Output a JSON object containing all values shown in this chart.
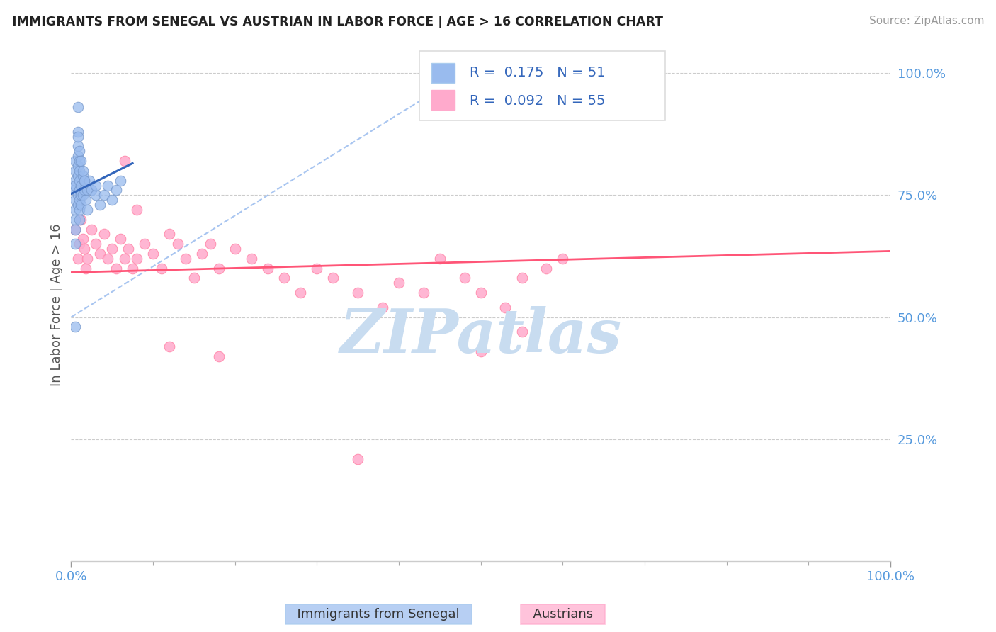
{
  "title": "IMMIGRANTS FROM SENEGAL VS AUSTRIAN IN LABOR FORCE | AGE > 16 CORRELATION CHART",
  "source": "Source: ZipAtlas.com",
  "ylabel": "In Labor Force | Age > 16",
  "legend_text1": "R =  0.175   N = 51",
  "legend_text2": "R =  0.092   N = 55",
  "blue_color": "#99BBEE",
  "blue_edge": "#7799CC",
  "pink_color": "#FFAACC",
  "pink_edge": "#FF88AA",
  "blue_line_color": "#3366BB",
  "pink_line_color": "#FF5577",
  "blue_dash_color": "#99BBEE",
  "watermark_color": "#C8DCF0",
  "background_color": "#FFFFFF",
  "grid_color": "#CCCCCC",
  "right_tick_color": "#5599DD",
  "bottom_tick_color": "#5599DD",
  "senegal_x": [
    0.005,
    0.005,
    0.005,
    0.005,
    0.005,
    0.005,
    0.005,
    0.005,
    0.005,
    0.008,
    0.008,
    0.008,
    0.008,
    0.008,
    0.008,
    0.008,
    0.01,
    0.01,
    0.01,
    0.01,
    0.01,
    0.01,
    0.01,
    0.012,
    0.012,
    0.012,
    0.014,
    0.014,
    0.016,
    0.016,
    0.018,
    0.02,
    0.02,
    0.022,
    0.025,
    0.03,
    0.03,
    0.035,
    0.04,
    0.045,
    0.05,
    0.055,
    0.06,
    0.005,
    0.008,
    0.008,
    0.01,
    0.012,
    0.014,
    0.016,
    0.005
  ],
  "senegal_y": [
    0.76,
    0.78,
    0.8,
    0.82,
    0.74,
    0.72,
    0.7,
    0.68,
    0.77,
    0.79,
    0.81,
    0.75,
    0.73,
    0.85,
    0.88,
    0.83,
    0.76,
    0.78,
    0.74,
    0.72,
    0.8,
    0.82,
    0.7,
    0.75,
    0.77,
    0.73,
    0.79,
    0.75,
    0.76,
    0.78,
    0.74,
    0.76,
    0.72,
    0.78,
    0.76,
    0.75,
    0.77,
    0.73,
    0.75,
    0.77,
    0.74,
    0.76,
    0.78,
    0.48,
    0.93,
    0.87,
    0.84,
    0.82,
    0.8,
    0.78,
    0.65
  ],
  "austrian_x": [
    0.005,
    0.008,
    0.01,
    0.012,
    0.014,
    0.016,
    0.018,
    0.02,
    0.025,
    0.03,
    0.035,
    0.04,
    0.045,
    0.05,
    0.055,
    0.06,
    0.065,
    0.07,
    0.075,
    0.08,
    0.09,
    0.1,
    0.11,
    0.12,
    0.13,
    0.14,
    0.15,
    0.16,
    0.17,
    0.18,
    0.2,
    0.22,
    0.24,
    0.26,
    0.28,
    0.3,
    0.32,
    0.35,
    0.38,
    0.4,
    0.43,
    0.45,
    0.48,
    0.5,
    0.53,
    0.55,
    0.58,
    0.6,
    0.065,
    0.08,
    0.12,
    0.18,
    0.35,
    0.5,
    0.55
  ],
  "austrian_y": [
    0.68,
    0.62,
    0.65,
    0.7,
    0.66,
    0.64,
    0.6,
    0.62,
    0.68,
    0.65,
    0.63,
    0.67,
    0.62,
    0.64,
    0.6,
    0.66,
    0.62,
    0.64,
    0.6,
    0.62,
    0.65,
    0.63,
    0.6,
    0.67,
    0.65,
    0.62,
    0.58,
    0.63,
    0.65,
    0.6,
    0.64,
    0.62,
    0.6,
    0.58,
    0.55,
    0.6,
    0.58,
    0.55,
    0.52,
    0.57,
    0.55,
    0.62,
    0.58,
    0.55,
    0.52,
    0.58,
    0.6,
    0.62,
    0.82,
    0.72,
    0.44,
    0.42,
    0.21,
    0.43,
    0.47
  ],
  "xlim": [
    0.0,
    1.0
  ],
  "ylim": [
    0.0,
    1.05
  ]
}
